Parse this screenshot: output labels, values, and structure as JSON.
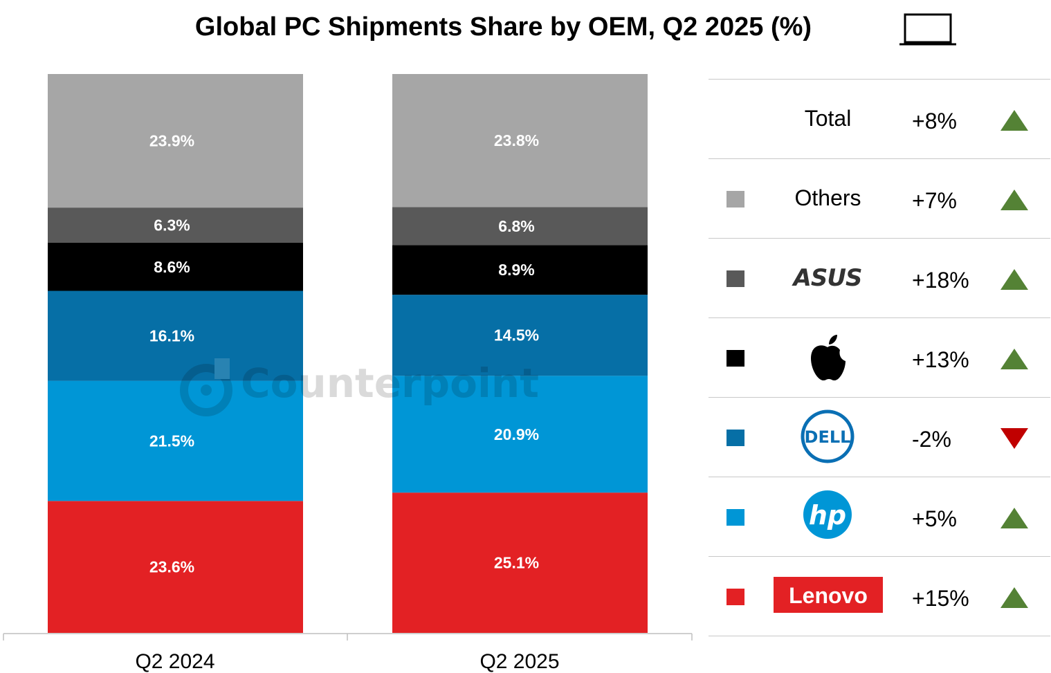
{
  "title": "Global PC Shipments Share by OEM, Q2 2025 (%)",
  "watermark": "Counterpoint",
  "chart_data": {
    "type": "bar",
    "stacked": true,
    "unit": "%",
    "categories": [
      "Q2 2024",
      "Q2 2025"
    ],
    "series": [
      {
        "name": "Lenovo",
        "color": "#e32124",
        "values": [
          23.6,
          25.1
        ],
        "labels": [
          "23.6%",
          "25.1%"
        ]
      },
      {
        "name": "HP",
        "color": "#0096d6",
        "values": [
          21.5,
          20.9
        ],
        "labels": [
          "21.5%",
          "20.9%"
        ]
      },
      {
        "name": "Dell",
        "color": "#066fa6",
        "values": [
          16.1,
          14.5
        ],
        "labels": [
          "16.1%",
          "14.5%"
        ]
      },
      {
        "name": "Apple",
        "color": "#000000",
        "values": [
          8.6,
          8.9
        ],
        "labels": [
          "8.6%",
          "8.9%"
        ]
      },
      {
        "name": "ASUS",
        "color": "#595959",
        "values": [
          6.3,
          6.8
        ],
        "labels": [
          "6.3%",
          "6.8%"
        ]
      },
      {
        "name": "Others",
        "color": "#a6a6a6",
        "values": [
          23.9,
          23.8
        ],
        "labels": [
          "23.9%",
          "23.8%"
        ]
      }
    ],
    "legend_placement": "right",
    "grid": false
  },
  "legend": {
    "rows": [
      {
        "label": "Total",
        "change": "+8%",
        "direction": "up",
        "icon": "none"
      },
      {
        "label": "Others",
        "change": "+7%",
        "direction": "up",
        "icon": "none",
        "swatch": "#a6a6a6"
      },
      {
        "label": "ASUS",
        "change": "+18%",
        "direction": "up",
        "icon": "asus-logo",
        "swatch": "#595959"
      },
      {
        "label": "Apple",
        "change": "+13%",
        "direction": "up",
        "icon": "apple-logo",
        "swatch": "#000000"
      },
      {
        "label": "DELL",
        "change": "-2%",
        "direction": "down",
        "icon": "dell-logo",
        "swatch": "#066fa6"
      },
      {
        "label": "hp",
        "change": "+5%",
        "direction": "up",
        "icon": "hp-logo",
        "swatch": "#0096d6"
      },
      {
        "label": "Lenovo",
        "change": "+15%",
        "direction": "up",
        "icon": "lenovo-logo",
        "swatch": "#e32124"
      }
    ],
    "up_color": "#548235",
    "down_color": "#c00000"
  }
}
